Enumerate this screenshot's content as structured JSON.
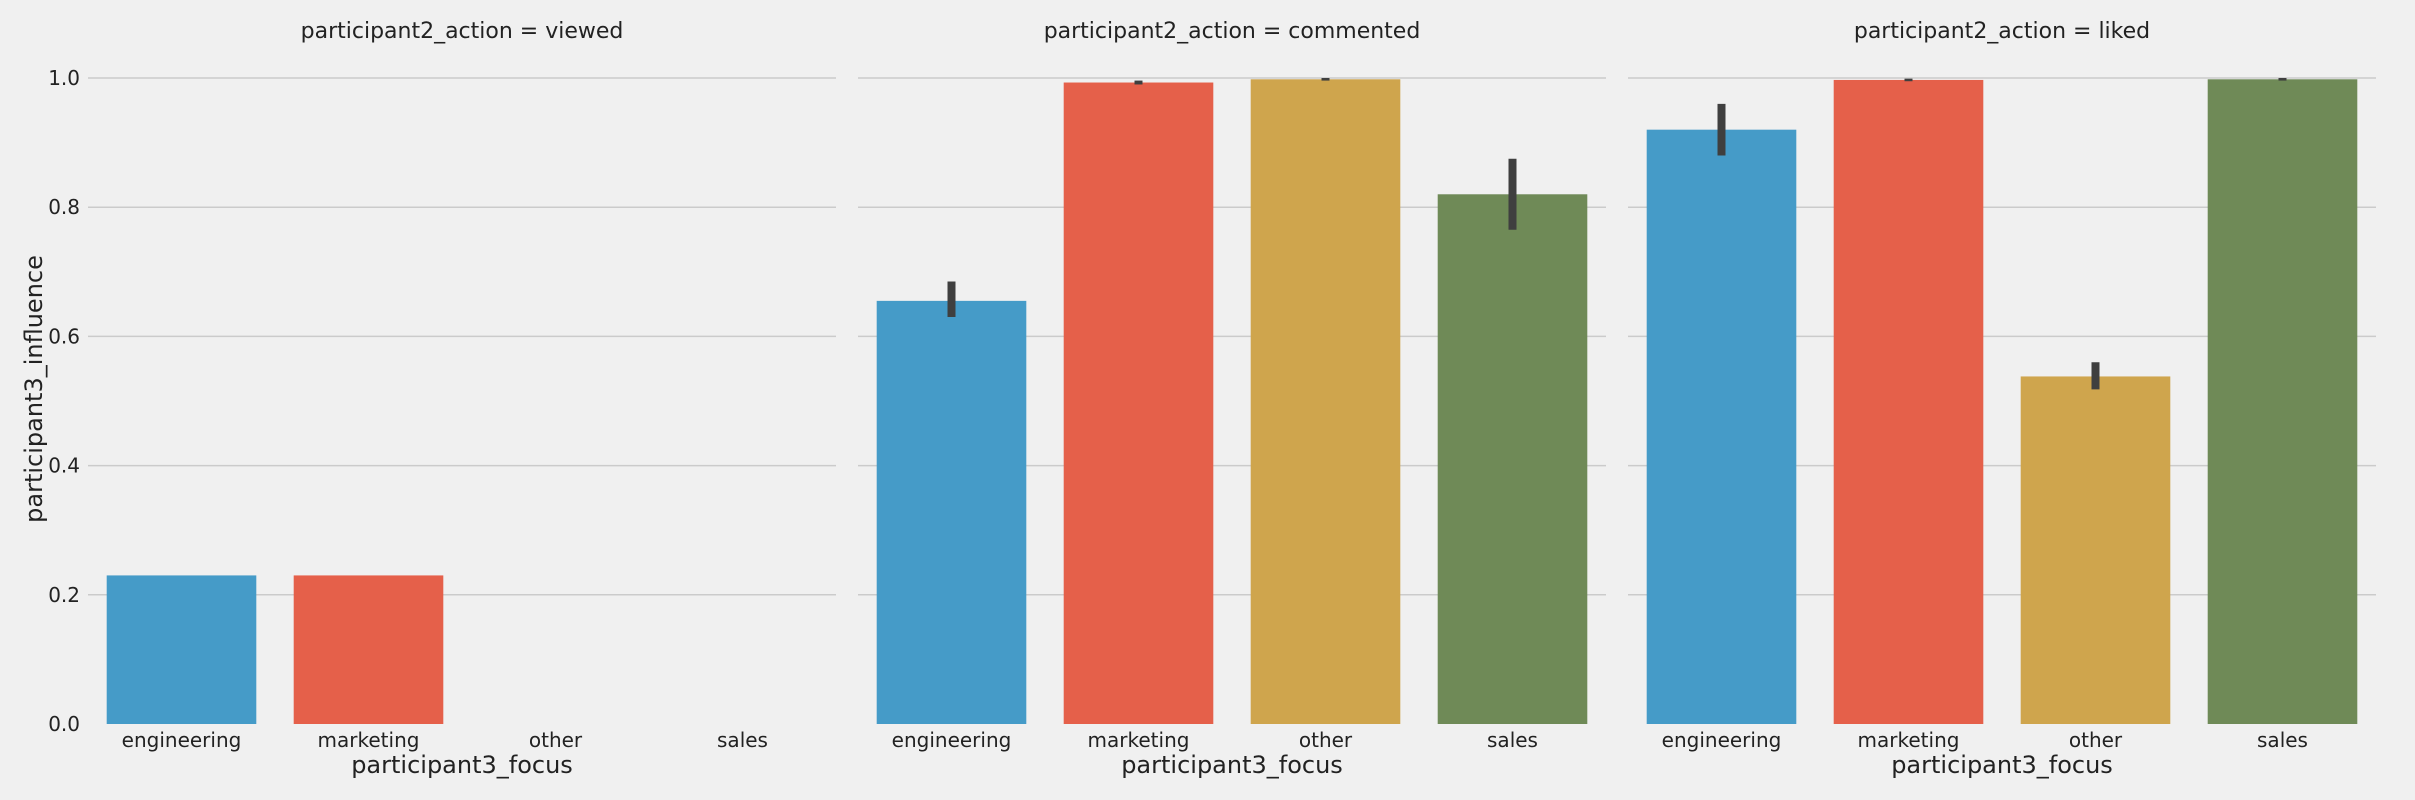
{
  "chart_data": {
    "type": "bar",
    "ylabel": "participant3_influence",
    "xlabel": "participant3_focus",
    "ylim": [
      0,
      1.0
    ],
    "yticks": [
      "0.0",
      "0.2",
      "0.4",
      "0.6",
      "0.8",
      "1.0"
    ],
    "grid": true,
    "categories": [
      "engineering",
      "marketing",
      "other",
      "sales"
    ],
    "colors": [
      "#459bc8",
      "#e5604a",
      "#cfa54d",
      "#6f8a57"
    ],
    "panels": [
      {
        "title": "participant2_action = viewed",
        "values": [
          0.23,
          0.23,
          null,
          null
        ],
        "err": [
          null,
          null,
          null,
          null
        ]
      },
      {
        "title": "participant2_action = commented",
        "values": [
          0.655,
          0.993,
          0.998,
          0.82
        ],
        "err": [
          [
            0.63,
            0.685
          ],
          [
            0.99,
            0.996
          ],
          [
            0.996,
            1.0
          ],
          [
            0.765,
            0.875
          ]
        ]
      },
      {
        "title": "participant2_action = liked",
        "values": [
          0.92,
          0.997,
          0.538,
          0.998
        ],
        "err": [
          [
            0.88,
            0.96
          ],
          [
            0.995,
            0.999
          ],
          [
            0.518,
            0.56
          ],
          [
            0.996,
            1.0
          ]
        ]
      }
    ]
  }
}
